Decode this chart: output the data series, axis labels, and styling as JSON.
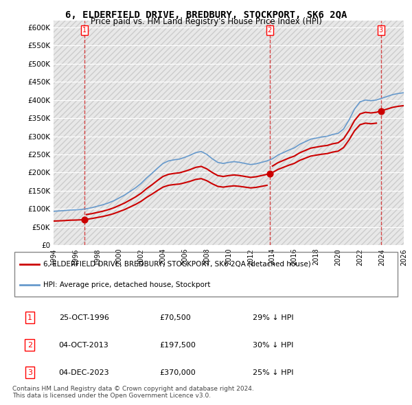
{
  "title": "6, ELDERFIELD DRIVE, BREDBURY, STOCKPORT, SK6 2QA",
  "subtitle": "Price paid vs. HM Land Registry's House Price Index (HPI)",
  "ylabel": "",
  "xlabel": "",
  "ylim": [
    0,
    620000
  ],
  "yticks": [
    0,
    50000,
    100000,
    150000,
    200000,
    250000,
    300000,
    350000,
    400000,
    450000,
    500000,
    550000,
    600000
  ],
  "ytick_labels": [
    "£0",
    "£50K",
    "£100K",
    "£150K",
    "£200K",
    "£250K",
    "£300K",
    "£350K",
    "£400K",
    "£450K",
    "£500K",
    "£550K",
    "£600K"
  ],
  "background_color": "#ffffff",
  "plot_bg_color": "#f0f0f0",
  "hatch_color": "#d0d0d0",
  "grid_color": "#ffffff",
  "sale_dates": [
    1996.83,
    2013.75,
    2023.92
  ],
  "sale_prices": [
    70500,
    197500,
    370000
  ],
  "sale_labels": [
    "1",
    "2",
    "3"
  ],
  "sale_color": "#cc0000",
  "hpi_color": "#6699cc",
  "legend_entries": [
    "6, ELDERFIELD DRIVE, BREDBURY, STOCKPORT, SK6 2QA (detached house)",
    "HPI: Average price, detached house, Stockport"
  ],
  "table_rows": [
    [
      "1",
      "25-OCT-1996",
      "£70,500",
      "29% ↓ HPI"
    ],
    [
      "2",
      "04-OCT-2013",
      "£197,500",
      "30% ↓ HPI"
    ],
    [
      "3",
      "04-DEC-2023",
      "£370,000",
      "25% ↓ HPI"
    ]
  ],
  "footer": "Contains HM Land Registry data © Crown copyright and database right 2024.\nThis data is licensed under the Open Government Licence v3.0.",
  "xmin": 1994,
  "xmax": 2026
}
